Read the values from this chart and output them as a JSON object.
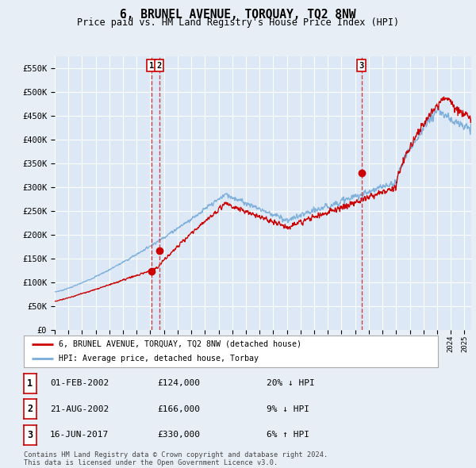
{
  "title": "6, BRUNEL AVENUE, TORQUAY, TQ2 8NW",
  "subtitle": "Price paid vs. HM Land Registry's House Price Index (HPI)",
  "background_color": "#e8eef5",
  "plot_bg_color": "#dce8f5",
  "grid_color": "#ffffff",
  "ylim": [
    0,
    575000
  ],
  "yticks": [
    0,
    50000,
    100000,
    150000,
    200000,
    250000,
    300000,
    350000,
    400000,
    450000,
    500000,
    550000
  ],
  "ytick_labels": [
    "£0",
    "£50K",
    "£100K",
    "£150K",
    "£200K",
    "£250K",
    "£300K",
    "£350K",
    "£400K",
    "£450K",
    "£500K",
    "£550K"
  ],
  "xmin": 1995.0,
  "xmax": 2025.5,
  "legend_label_red": "6, BRUNEL AVENUE, TORQUAY, TQ2 8NW (detached house)",
  "legend_label_blue": "HPI: Average price, detached house, Torbay",
  "transactions": [
    {
      "num": 1,
      "date": 2002.09,
      "price": 124000,
      "label": "1"
    },
    {
      "num": 2,
      "date": 2002.64,
      "price": 166000,
      "label": "2"
    },
    {
      "num": 3,
      "date": 2017.46,
      "price": 330000,
      "label": "3"
    }
  ],
  "transaction_table": [
    {
      "num": "1",
      "date": "01-FEB-2002",
      "price": "£124,000",
      "change": "20% ↓ HPI"
    },
    {
      "num": "2",
      "date": "21-AUG-2002",
      "price": "£166,000",
      "change": "9% ↓ HPI"
    },
    {
      "num": "3",
      "date": "16-JUN-2017",
      "price": "£330,000",
      "change": "6% ↑ HPI"
    }
  ],
  "footer": "Contains HM Land Registry data © Crown copyright and database right 2024.\nThis data is licensed under the Open Government Licence v3.0.",
  "red_color": "#cc0000",
  "blue_color": "#7aaddb",
  "vline_color": "#cc4444",
  "anno_box_color": "#ffffff",
  "anno_border_color": "#cc0000"
}
